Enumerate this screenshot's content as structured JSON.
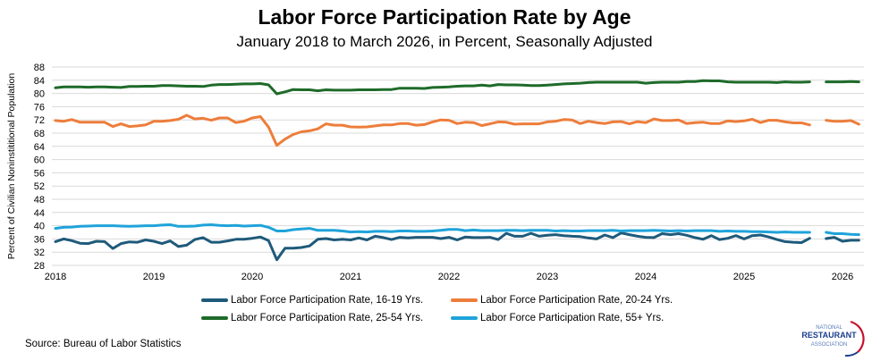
{
  "chart_data": {
    "type": "line",
    "title": "Labor Force Participation Rate by Age",
    "subtitle": "January 2018 to March 2026, in Percent, Seasonally Adjusted",
    "ylabel": "Percent of Civilian Noninstititional Population",
    "xlabel": "",
    "ylim": [
      28,
      88
    ],
    "yticks": [
      "28",
      "32",
      "36",
      "40",
      "44",
      "48",
      "52",
      "56",
      "60",
      "64",
      "68",
      "72",
      "76",
      "80",
      "84",
      "88"
    ],
    "xticks": [
      "2018",
      "2019",
      "2020",
      "2021",
      "2022",
      "2023",
      "2024",
      "2025",
      "2026"
    ],
    "x_start": "2018-01",
    "x_frequency": "monthly",
    "grid": "horizontal",
    "legend_position": "bottom",
    "series": [
      {
        "name": "Labor Force Participation Rate, 16-19 Yrs.",
        "color": "#1f5a7a",
        "values": [
          35.2,
          36.0,
          35.5,
          34.7,
          34.6,
          35.3,
          35.2,
          33.1,
          34.6,
          35.1,
          35.0,
          35.7,
          35.3,
          34.6,
          35.4,
          33.7,
          34.1,
          35.8,
          36.4,
          35.0,
          35.0,
          35.4,
          35.9,
          35.9,
          36.2,
          36.6,
          35.5,
          29.7,
          33.2,
          33.2,
          33.4,
          33.9,
          35.9,
          36.1,
          35.7,
          35.9,
          35.7,
          36.3,
          35.7,
          36.8,
          36.4,
          35.8,
          36.5,
          36.3,
          36.5,
          36.5,
          36.5,
          36.1,
          36.5,
          35.7,
          36.6,
          36.4,
          36.4,
          36.5,
          35.8,
          37.7,
          36.8,
          36.8,
          37.7,
          36.8,
          37.1,
          37.3,
          37.0,
          36.8,
          36.7,
          36.3,
          36.0,
          37.2,
          36.4,
          37.8,
          37.3,
          36.8,
          36.5,
          36.4,
          37.6,
          37.3,
          37.6,
          37.1,
          36.4,
          35.9,
          37.0,
          35.8,
          36.2,
          37.0,
          36.0,
          37.0,
          37.2,
          36.6,
          35.8,
          35.2,
          35.0,
          34.9,
          36.2,
          null,
          36.1,
          36.5,
          35.3,
          35.6,
          35.6
        ]
      },
      {
        "name": "Labor Force Participation Rate, 20-24 Yrs.",
        "color": "#ed7d3b",
        "values": [
          71.8,
          71.6,
          72.1,
          71.3,
          71.3,
          71.3,
          71.3,
          70.0,
          70.8,
          70.0,
          70.2,
          70.5,
          71.6,
          71.6,
          71.8,
          72.2,
          73.4,
          72.3,
          72.5,
          71.9,
          72.6,
          72.6,
          71.2,
          71.6,
          72.6,
          73.0,
          69.8,
          64.3,
          66.2,
          67.6,
          68.4,
          68.7,
          69.3,
          70.8,
          70.4,
          70.4,
          69.9,
          69.8,
          69.9,
          70.2,
          70.5,
          70.5,
          70.9,
          70.9,
          70.4,
          70.6,
          71.4,
          72.0,
          71.9,
          70.9,
          71.3,
          71.2,
          70.3,
          70.8,
          71.4,
          71.3,
          70.7,
          70.8,
          70.8,
          70.8,
          71.4,
          71.6,
          72.1,
          72.0,
          70.9,
          71.6,
          71.2,
          70.9,
          71.4,
          71.5,
          70.8,
          71.5,
          71.2,
          72.3,
          71.8,
          71.8,
          72.0,
          70.9,
          71.2,
          71.3,
          70.9,
          70.9,
          71.7,
          71.5,
          71.7,
          72.2,
          71.2,
          71.9,
          71.9,
          71.4,
          71.1,
          71.1,
          70.5,
          null,
          71.9,
          71.6,
          71.6,
          71.8,
          70.7
        ]
      },
      {
        "name": "Labor Force Participation Rate, 25-54 Yrs.",
        "color": "#1e6b2a",
        "values": [
          81.7,
          82.0,
          82.0,
          82.0,
          81.9,
          82.0,
          82.0,
          81.9,
          81.8,
          82.1,
          82.1,
          82.2,
          82.2,
          82.4,
          82.4,
          82.3,
          82.2,
          82.2,
          82.1,
          82.5,
          82.7,
          82.7,
          82.8,
          82.9,
          82.9,
          83.0,
          82.6,
          79.9,
          80.5,
          81.2,
          81.1,
          81.1,
          80.8,
          81.1,
          81.0,
          81.0,
          81.0,
          81.1,
          81.1,
          81.1,
          81.2,
          81.2,
          81.6,
          81.6,
          81.6,
          81.5,
          81.8,
          81.9,
          82.0,
          82.2,
          82.3,
          82.3,
          82.5,
          82.3,
          82.7,
          82.6,
          82.6,
          82.5,
          82.4,
          82.4,
          82.5,
          82.7,
          82.9,
          83.0,
          83.1,
          83.3,
          83.4,
          83.4,
          83.4,
          83.4,
          83.4,
          83.4,
          83.1,
          83.3,
          83.4,
          83.4,
          83.4,
          83.6,
          83.6,
          83.9,
          83.8,
          83.8,
          83.5,
          83.4,
          83.4,
          83.4,
          83.4,
          83.4,
          83.3,
          83.5,
          83.4,
          83.4,
          83.5,
          null,
          83.5,
          83.5,
          83.5,
          83.6,
          83.5
        ]
      },
      {
        "name": "Labor Force Participation Rate, 55+ Yrs.",
        "color": "#1fa3d9",
        "values": [
          39.2,
          39.5,
          39.6,
          39.8,
          39.9,
          40.0,
          40.0,
          40.0,
          39.9,
          39.8,
          39.9,
          40.0,
          40.0,
          40.2,
          40.3,
          39.8,
          39.8,
          39.9,
          40.2,
          40.3,
          40.1,
          40.0,
          40.1,
          39.9,
          40.0,
          40.1,
          39.5,
          38.4,
          38.4,
          38.8,
          39.0,
          39.2,
          38.6,
          38.6,
          38.6,
          38.4,
          38.1,
          38.2,
          38.1,
          38.3,
          38.3,
          38.2,
          38.4,
          38.4,
          38.3,
          38.3,
          38.4,
          38.6,
          38.9,
          38.9,
          38.5,
          38.7,
          38.5,
          38.5,
          38.5,
          38.6,
          38.6,
          38.5,
          38.6,
          38.6,
          38.6,
          38.4,
          38.5,
          38.4,
          38.4,
          38.5,
          38.5,
          38.5,
          38.6,
          38.4,
          38.5,
          38.5,
          38.5,
          38.6,
          38.5,
          38.4,
          38.5,
          38.4,
          38.5,
          38.5,
          38.5,
          38.3,
          38.4,
          38.3,
          38.3,
          38.2,
          38.2,
          38.1,
          38.0,
          38.1,
          38.0,
          38.0,
          38.0,
          null,
          38.0,
          37.6,
          37.6,
          37.4,
          37.3
        ]
      }
    ]
  },
  "source": "Source: Bureau of Labor Statistics",
  "logo": {
    "line1": "NATIONAL",
    "line2": "RESTAURANT",
    "line3": "ASSOCIATION"
  }
}
